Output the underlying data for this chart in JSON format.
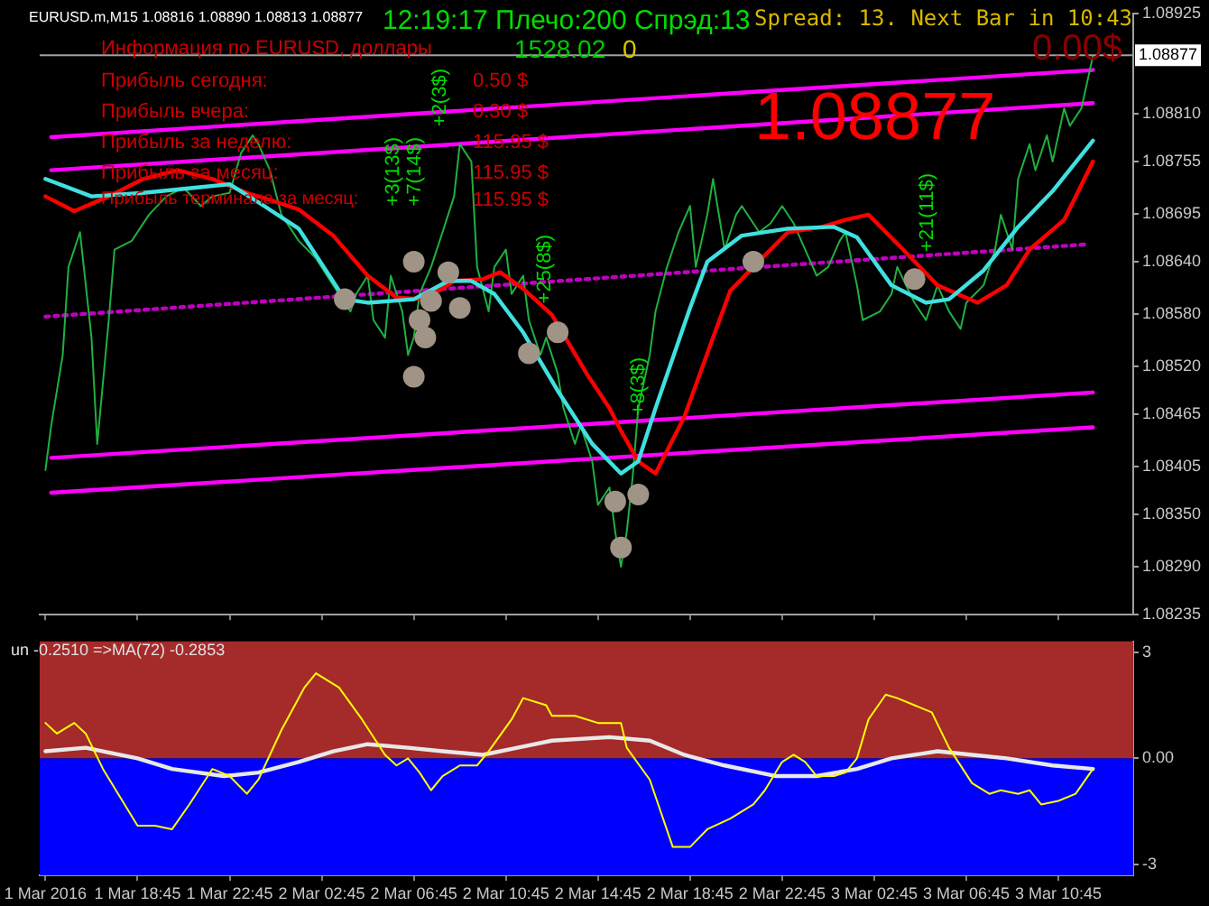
{
  "chart_data": [
    {
      "type": "line",
      "title": "EURUSD.m,M15  1.08816 1.08890 1.08813 1.08877",
      "annotations": [
        "12:19:17 Плечо:200 Спрэд:13",
        "Spread: 13. Next Bar in 10:43",
        "0.00$",
        "1.08877",
        "Информация по EURUSD, доллары",
        "1528.02",
        "0",
        "Прибыль сегодня:",
        "0.50 $",
        "Прибыль вчера:",
        "0.30 $",
        "Прибыль за неделю:",
        "115.95 $",
        "Прибыль за месяц:",
        "115.95 $",
        "Прибыль терминала за месяц:",
        "115.95 $",
        "+3(13$)",
        "+7(14$)",
        "+2(3$)",
        "+25(8$)",
        "+8(3$)",
        "+21(11$)"
      ],
      "xlim": [
        "2016-03-01T14:30",
        "2016-03-03T14:00"
      ],
      "xticks": [
        {
          "value": "2016-03-01T14:45",
          "label": null
        },
        {
          "value": "2016-03-01T18:45",
          "label": null
        },
        {
          "value": "2016-03-01T22:45",
          "label": null
        },
        {
          "value": "2016-03-02T02:45",
          "label": null
        },
        {
          "value": "2016-03-02T06:45",
          "label": null
        },
        {
          "value": "2016-03-02T10:45",
          "label": null
        },
        {
          "value": "2016-03-02T14:45",
          "label": null
        },
        {
          "value": "2016-03-02T18:45",
          "label": null
        },
        {
          "value": "2016-03-02T22:45",
          "label": null
        },
        {
          "value": "2016-03-03T02:45",
          "label": null
        },
        {
          "value": "2016-03-03T06:45",
          "label": null
        },
        {
          "value": "2016-03-03T10:45",
          "label": null
        }
      ],
      "ylim": [
        1.08235,
        1.08925
      ],
      "yticks": [
        1.08925,
        {
          "value": 1.0881,
          "label": "1.08810"
        },
        1.08755,
        1.08695,
        {
          "value": 1.0864,
          "label": "1.08640"
        },
        {
          "value": 1.0858,
          "label": "1.08580"
        },
        {
          "value": 1.0852,
          "label": "1.08520"
        },
        1.08465,
        1.08405,
        {
          "value": 1.0835,
          "label": "1.08350"
        },
        {
          "value": 1.0829,
          "label": "1.08290"
        },
        1.08235
      ],
      "tick_labels": "y",
      "ref_lines": [
        {
          "axis": "y",
          "value": 1.08877,
          "label": "1.08877",
          "color": "#a0a0a0"
        }
      ],
      "series": [
        {
          "color": "#ff00ff",
          "marker": "none",
          "x": [
            "2016-03-01T15:00",
            "2016-03-03T12:15"
          ],
          "values": [
            1.08783,
            1.0886
          ]
        },
        {
          "color": "#ff00ff",
          "marker": "none",
          "x": [
            "2016-03-01T15:00",
            "2016-03-03T12:15"
          ],
          "values": [
            1.08745,
            1.08822
          ]
        },
        {
          "color": "#ff00ff",
          "marker": "none",
          "x": [
            "2016-03-01T15:00",
            "2016-03-03T12:15"
          ],
          "values": [
            1.08415,
            1.0849
          ]
        },
        {
          "color": "#ff00ff",
          "marker": "none",
          "x": [
            "2016-03-01T15:00",
            "2016-03-03T12:15"
          ],
          "values": [
            1.08375,
            1.0845
          ]
        },
        {
          "color": "#c000c0",
          "marker": "none",
          "line_style": "dotted",
          "x": [
            "2016-03-01T14:45",
            "2016-03-03T12:00"
          ],
          "values": [
            1.08577,
            1.0866
          ]
        },
        {
          "color": "#20b040",
          "marker": "none",
          "x": [
            "2016-03-01T14:45",
            "2016-03-01T15:00",
            "2016-03-01T15:30",
            "2016-03-01T15:45",
            "2016-03-01T16:15",
            "2016-03-01T16:45",
            "2016-03-01T17:00",
            "2016-03-01T17:30",
            "2016-03-01T17:45",
            "2016-03-01T18:30",
            "2016-03-01T19:15",
            "2016-03-01T20:00",
            "2016-03-01T20:45",
            "2016-03-01T21:30",
            "2016-03-01T22:00",
            "2016-03-01T22:45",
            "2016-03-01T23:15",
            "2016-03-01T23:45",
            "2016-03-02T00:00",
            "2016-03-02T00:30",
            "2016-03-02T01:00",
            "2016-03-02T01:45",
            "2016-03-02T02:30",
            "2016-03-02T03:15",
            "2016-03-02T04:00",
            "2016-03-02T04:15",
            "2016-03-02T04:45",
            "2016-03-02T05:00",
            "2016-03-02T05:30",
            "2016-03-02T05:45",
            "2016-03-02T06:15",
            "2016-03-02T06:30",
            "2016-03-02T06:45",
            "2016-03-02T07:00",
            "2016-03-02T07:30",
            "2016-03-02T08:00",
            "2016-03-02T08:30",
            "2016-03-02T08:45",
            "2016-03-02T09:15",
            "2016-03-02T09:30",
            "2016-03-02T10:00",
            "2016-03-02T10:15",
            "2016-03-02T10:45",
            "2016-03-02T11:00",
            "2016-03-02T11:30",
            "2016-03-02T11:45",
            "2016-03-02T12:15",
            "2016-03-02T12:30",
            "2016-03-02T13:00",
            "2016-03-02T13:15",
            "2016-03-02T13:45",
            "2016-03-02T14:00",
            "2016-03-02T14:30",
            "2016-03-02T14:45",
            "2016-03-02T15:15",
            "2016-03-02T15:30",
            "2016-03-02T15:45",
            "2016-03-02T16:00",
            "2016-03-02T16:15",
            "2016-03-02T16:30",
            "2016-03-02T17:00",
            "2016-03-02T17:15",
            "2016-03-02T17:45",
            "2016-03-02T18:15",
            "2016-03-02T18:45",
            "2016-03-02T19:00",
            "2016-03-02T19:30",
            "2016-03-02T19:45",
            "2016-03-02T20:15",
            "2016-03-02T20:45",
            "2016-03-02T21:00",
            "2016-03-02T21:45",
            "2016-03-02T22:15",
            "2016-03-02T22:45",
            "2016-03-02T23:15",
            "2016-03-02T23:45",
            "2016-03-03T00:15",
            "2016-03-03T00:45",
            "2016-03-03T01:15",
            "2016-03-03T01:30",
            "2016-03-03T02:00",
            "2016-03-03T02:15",
            "2016-03-03T03:00",
            "2016-03-03T03:30",
            "2016-03-03T03:45",
            "2016-03-03T04:30",
            "2016-03-03T05:00",
            "2016-03-03T05:30",
            "2016-03-03T06:00",
            "2016-03-03T06:30",
            "2016-03-03T06:45",
            "2016-03-03T07:30",
            "2016-03-03T08:00",
            "2016-03-03T08:15",
            "2016-03-03T08:45",
            "2016-03-03T09:00",
            "2016-03-03T09:30",
            "2016-03-03T09:45",
            "2016-03-03T10:15",
            "2016-03-03T10:30",
            "2016-03-03T11:00",
            "2016-03-03T11:15",
            "2016-03-03T11:45",
            "2016-03-03T12:00",
            "2016-03-03T12:15"
          ],
          "values": [
            1.08401,
            1.08452,
            1.08533,
            1.08634,
            1.08674,
            1.08553,
            1.08431,
            1.08573,
            1.08654,
            1.08664,
            1.08694,
            1.08715,
            1.08725,
            1.08704,
            1.08715,
            1.08719,
            1.08765,
            1.08785,
            1.08775,
            1.08745,
            1.08694,
            1.08664,
            1.08644,
            1.08613,
            1.08583,
            1.08603,
            1.08624,
            1.08573,
            1.08553,
            1.08624,
            1.08583,
            1.08533,
            1.08553,
            1.08603,
            1.08634,
            1.08674,
            1.08715,
            1.08775,
            1.08755,
            1.08634,
            1.08583,
            1.08634,
            1.08654,
            1.08603,
            1.08624,
            1.08573,
            1.08533,
            1.08553,
            1.08512,
            1.08472,
            1.08431,
            1.08452,
            1.08411,
            1.08361,
            1.08381,
            1.0833,
            1.0829,
            1.0833,
            1.08391,
            1.08472,
            1.08533,
            1.08583,
            1.08634,
            1.08674,
            1.08704,
            1.08634,
            1.08694,
            1.08735,
            1.08654,
            1.08694,
            1.08704,
            1.08674,
            1.08684,
            1.08704,
            1.08684,
            1.08654,
            1.08624,
            1.08634,
            1.08664,
            1.08674,
            1.08613,
            1.08573,
            1.08583,
            1.08603,
            1.08634,
            1.08593,
            1.08573,
            1.08613,
            1.08583,
            1.08563,
            1.08593,
            1.08613,
            1.08654,
            1.08694,
            1.08654,
            1.08735,
            1.08775,
            1.08745,
            1.08785,
            1.08755,
            1.08816,
            1.08796,
            1.08816,
            1.08846,
            1.08876
          ]
        },
        {
          "color": "#ff0000",
          "marker": "none",
          "x": [
            "2016-03-01T14:45",
            "2016-03-01T16:00",
            "2016-03-01T17:30",
            "2016-03-01T19:00",
            "2016-03-01T20:30",
            "2016-03-01T22:00",
            "2016-03-01T23:30",
            "2016-03-02T00:30",
            "2016-03-02T01:45",
            "2016-03-02T03:15",
            "2016-03-02T04:45",
            "2016-03-02T06:00",
            "2016-03-02T07:15",
            "2016-03-02T08:30",
            "2016-03-02T09:45",
            "2016-03-02T10:30",
            "2016-03-02T11:30",
            "2016-03-02T12:45",
            "2016-03-02T14:15",
            "2016-03-02T15:15",
            "2016-03-02T15:45",
            "2016-03-02T16:30",
            "2016-03-02T17:15",
            "2016-03-02T18:30",
            "2016-03-02T19:45",
            "2016-03-02T20:30",
            "2016-03-02T21:30",
            "2016-03-02T23:00",
            "2016-03-03T00:30",
            "2016-03-03T01:30",
            "2016-03-03T02:30",
            "2016-03-03T04:00",
            "2016-03-03T05:30",
            "2016-03-03T07:15",
            "2016-03-03T08:30",
            "2016-03-03T09:30",
            "2016-03-03T11:00",
            "2016-03-03T12:15"
          ],
          "values": [
            1.08715,
            1.08698,
            1.08715,
            1.08735,
            1.08745,
            1.08735,
            1.08719,
            1.08711,
            1.087,
            1.0867,
            1.08624,
            1.08599,
            1.08597,
            1.08618,
            1.0862,
            1.08628,
            1.08609,
            1.08579,
            1.08512,
            1.08472,
            1.08446,
            1.08411,
            1.08397,
            1.08462,
            1.08553,
            1.08607,
            1.08634,
            1.08674,
            1.0868,
            1.08688,
            1.08694,
            1.08654,
            1.08613,
            1.08593,
            1.08613,
            1.08654,
            1.08688,
            1.08755
          ]
        },
        {
          "color": "#40e0e0",
          "marker": "none",
          "x": [
            "2016-03-01T14:45",
            "2016-03-01T16:45",
            "2016-03-01T19:00",
            "2016-03-01T21:15",
            "2016-03-01T22:45",
            "2016-03-02T00:15",
            "2016-03-02T01:45",
            "2016-03-02T03:45",
            "2016-03-02T04:45",
            "2016-03-02T06:45",
            "2016-03-02T08:15",
            "2016-03-02T09:15",
            "2016-03-02T10:15",
            "2016-03-02T11:30",
            "2016-03-02T13:00",
            "2016-03-02T14:30",
            "2016-03-02T15:45",
            "2016-03-02T16:30",
            "2016-03-02T17:15",
            "2016-03-02T18:45",
            "2016-03-02T19:30",
            "2016-03-02T21:00",
            "2016-03-02T23:00",
            "2016-03-03T01:00",
            "2016-03-03T02:00",
            "2016-03-03T03:30",
            "2016-03-03T05:00",
            "2016-03-03T06:00",
            "2016-03-03T07:30",
            "2016-03-03T09:00",
            "2016-03-03T10:30",
            "2016-03-03T12:15"
          ],
          "values": [
            1.08735,
            1.08715,
            1.08719,
            1.08725,
            1.08729,
            1.08704,
            1.08678,
            1.08597,
            1.08593,
            1.08597,
            1.08618,
            1.08618,
            1.08603,
            1.08559,
            1.08492,
            1.08431,
            1.08397,
            1.08411,
            1.08472,
            1.08587,
            1.0864,
            1.0867,
            1.08678,
            1.0868,
            1.08668,
            1.08613,
            1.08593,
            1.08597,
            1.0863,
            1.0868,
            1.08721,
            1.08779
          ]
        },
        {
          "type": "scatter",
          "color": "#a09486",
          "marker": "circle",
          "x": [
            "2016-03-02T03:45",
            "2016-03-02T06:45",
            "2016-03-02T08:15",
            "2016-03-02T07:30",
            "2016-03-02T07:00",
            "2016-03-02T08:45",
            "2016-03-02T07:15",
            "2016-03-02T06:45",
            "2016-03-02T11:45",
            "2016-03-02T13:00",
            "2016-03-02T15:30",
            "2016-03-02T16:30",
            "2016-03-02T15:45",
            "2016-03-02T21:30",
            "2016-03-03T04:30"
          ],
          "values": [
            1.08597,
            1.0864,
            1.08628,
            1.08595,
            1.08573,
            1.08587,
            1.08553,
            1.08508,
            1.08535,
            1.08559,
            1.08365,
            1.08373,
            1.08312,
            1.0864,
            1.0862
          ]
        }
      ]
    },
    {
      "type": "line",
      "annotations": [
        "un -0.2510  =>MA(72) -0.2853"
      ],
      "xlim": [
        "2016-03-01T14:30",
        "2016-03-03T14:00"
      ],
      "xticks": [
        {
          "value": "2016-03-01T14:45",
          "label": "1 Mar 2016"
        },
        {
          "value": "2016-03-01T18:45",
          "label": "1 Mar 18:45"
        },
        {
          "value": "2016-03-01T22:45",
          "label": "1 Mar 22:45"
        },
        {
          "value": "2016-03-02T02:45",
          "label": "2 Mar 02:45"
        },
        {
          "value": "2016-03-02T06:45",
          "label": "2 Mar 06:45"
        },
        {
          "value": "2016-03-02T10:45",
          "label": "2 Mar 10:45"
        },
        {
          "value": "2016-03-02T14:45",
          "label": "2 Mar 14:45"
        },
        {
          "value": "2016-03-02T18:45",
          "label": "2 Mar 18:45"
        },
        {
          "value": "2016-03-02T22:45",
          "label": "2 Mar 22:45"
        },
        {
          "value": "2016-03-03T02:45",
          "label": "3 Mar 02:45"
        },
        {
          "value": "2016-03-03T06:45",
          "label": "3 Mar 06:45"
        },
        {
          "value": "2016-03-03T10:45",
          "label": "3 Mar 10:45"
        }
      ],
      "ylim": [
        -3.3,
        3.3
      ],
      "yticks": [
        3,
        {
          "value": 0,
          "label": "0.00"
        },
        -3
      ],
      "bands": [
        {
          "axis": "y",
          "from": 0,
          "to": 3.3,
          "color": "#a52a2a"
        },
        {
          "axis": "y",
          "from": -3.3,
          "to": 0,
          "color": "#0000ff"
        }
      ],
      "series": [
        {
          "color": "#e8e8e8",
          "marker": "none",
          "x": [
            "2016-03-01T14:45",
            "2016-03-01T16:30",
            "2016-03-01T17:15",
            "2016-03-01T18:45",
            "2016-03-01T20:15",
            "2016-03-01T22:30",
            "2016-03-02T00:00",
            "2016-03-02T01:45",
            "2016-03-02T03:15",
            "2016-03-02T04:45",
            "2016-03-02T06:30",
            "2016-03-02T08:00",
            "2016-03-02T09:45",
            "2016-03-02T11:15",
            "2016-03-02T12:45",
            "2016-03-02T15:15",
            "2016-03-02T17:00",
            "2016-03-02T18:30",
            "2016-03-02T20:15",
            "2016-03-02T22:30",
            "2016-03-03T00:15",
            "2016-03-03T02:00",
            "2016-03-03T03:30",
            "2016-03-03T05:30",
            "2016-03-03T07:00",
            "2016-03-03T08:30",
            "2016-03-03T10:30",
            "2016-03-03T12:15"
          ],
          "values": [
            0.2,
            0.3,
            0.2,
            0.0,
            -0.3,
            -0.5,
            -0.4,
            -0.1,
            0.2,
            0.4,
            0.3,
            0.2,
            0.1,
            0.3,
            0.5,
            0.6,
            0.5,
            0.1,
            -0.2,
            -0.5,
            -0.5,
            -0.3,
            0.0,
            0.2,
            0.1,
            0.0,
            -0.2,
            -0.3
          ]
        },
        {
          "color": "#ffff00",
          "marker": "none",
          "x": [
            "2016-03-01T14:45",
            "2016-03-01T15:15",
            "2016-03-01T16:00",
            "2016-03-01T16:30",
            "2016-03-01T17:15",
            "2016-03-01T18:45",
            "2016-03-01T19:30",
            "2016-03-01T20:15",
            "2016-03-01T21:00",
            "2016-03-01T22:00",
            "2016-03-01T22:45",
            "2016-03-01T23:30",
            "2016-03-02T00:00",
            "2016-03-02T01:00",
            "2016-03-02T02:00",
            "2016-03-02T02:30",
            "2016-03-02T03:30",
            "2016-03-02T04:30",
            "2016-03-02T05:30",
            "2016-03-02T06:00",
            "2016-03-02T06:30",
            "2016-03-02T07:00",
            "2016-03-02T07:30",
            "2016-03-02T08:00",
            "2016-03-02T08:45",
            "2016-03-02T09:30",
            "2016-03-02T10:00",
            "2016-03-02T11:00",
            "2016-03-02T11:30",
            "2016-03-02T12:30",
            "2016-03-02T12:45",
            "2016-03-02T13:45",
            "2016-03-02T14:45",
            "2016-03-02T15:45",
            "2016-03-02T16:00",
            "2016-03-02T17:00",
            "2016-03-02T18:00",
            "2016-03-02T18:45",
            "2016-03-02T19:30",
            "2016-03-02T20:30",
            "2016-03-02T21:30",
            "2016-03-02T22:00",
            "2016-03-02T22:45",
            "2016-03-02T23:15",
            "2016-03-02T23:45",
            "2016-03-03T00:15",
            "2016-03-03T01:00",
            "2016-03-03T01:30",
            "2016-03-03T02:00",
            "2016-03-03T02:30",
            "2016-03-03T03:15",
            "2016-03-03T03:45",
            "2016-03-03T04:30",
            "2016-03-03T05:15",
            "2016-03-03T06:00",
            "2016-03-03T07:00",
            "2016-03-03T07:45",
            "2016-03-03T08:15",
            "2016-03-03T09:00",
            "2016-03-03T09:30",
            "2016-03-03T10:00",
            "2016-03-03T10:45",
            "2016-03-03T11:30",
            "2016-03-03T12:15"
          ],
          "values": [
            1.0,
            0.7,
            1.0,
            0.7,
            -0.3,
            -1.9,
            -1.9,
            -2.0,
            -1.3,
            -0.3,
            -0.5,
            -1.0,
            -0.6,
            0.8,
            2.0,
            2.4,
            2.0,
            1.1,
            0.1,
            -0.2,
            0.0,
            -0.4,
            -0.9,
            -0.5,
            -0.2,
            -0.2,
            0.2,
            1.1,
            1.7,
            1.5,
            1.2,
            1.2,
            1.0,
            1.0,
            0.3,
            -0.6,
            -2.5,
            -2.5,
            -2.0,
            -1.7,
            -1.3,
            -0.9,
            -0.1,
            0.1,
            -0.1,
            -0.5,
            -0.5,
            -0.4,
            0.0,
            1.1,
            1.8,
            1.7,
            1.5,
            1.3,
            0.3,
            -0.7,
            -1.0,
            -0.9,
            -1.0,
            -0.9,
            -1.3,
            -1.2,
            -1.0,
            -0.3
          ]
        }
      ]
    }
  ]
}
